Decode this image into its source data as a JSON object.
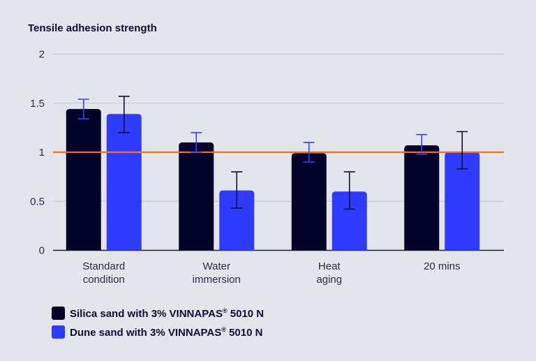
{
  "chart_data": {
    "type": "bar",
    "title": "Tensile adhesion strength",
    "xlabel": "",
    "ylabel": "Tensile adhesion strength",
    "ylim": [
      0,
      2
    ],
    "yticks": [
      0,
      0.5,
      1,
      1.5,
      2
    ],
    "ytick_labels": [
      "0",
      "0.5",
      "1",
      "1.5",
      "2"
    ],
    "grid": true,
    "categories": [
      [
        "Standard",
        "condition"
      ],
      [
        "Water",
        "immersion"
      ],
      [
        "Heat",
        "aging"
      ],
      [
        "20 mins"
      ]
    ],
    "series": [
      {
        "name": "Silica sand with 3% VINNAPAS® 5010 N",
        "color": "#02022a",
        "error_color": "#3344ff",
        "values": [
          1.44,
          1.1,
          0.99,
          1.07
        ],
        "error_high": [
          1.54,
          1.2,
          1.1,
          1.18
        ],
        "error_low": [
          1.34,
          1.0,
          0.9,
          0.98
        ]
      },
      {
        "name": "Dune sand with 3% VINNAPAS® 5010 N",
        "color": "#2f3cff",
        "error_color": "#0d0d35",
        "values": [
          1.39,
          0.61,
          0.6,
          1.0
        ],
        "error_high": [
          1.57,
          0.8,
          0.8,
          1.21
        ],
        "error_low": [
          1.2,
          0.43,
          0.42,
          0.83
        ]
      }
    ],
    "reference_line": {
      "value": 1,
      "color": "#ff6a13"
    },
    "legend_position": "bottom-left"
  },
  "legend": {
    "items": [
      {
        "prefix": "Silica sand with 3% VINNAPAS",
        "sup": "®",
        "suffix": " 5010 N",
        "color": "#02022a"
      },
      {
        "prefix": "Dune sand with 3% VINNAPAS",
        "sup": "®",
        "suffix": " 5010 N",
        "color": "#2f3cff"
      }
    ]
  }
}
